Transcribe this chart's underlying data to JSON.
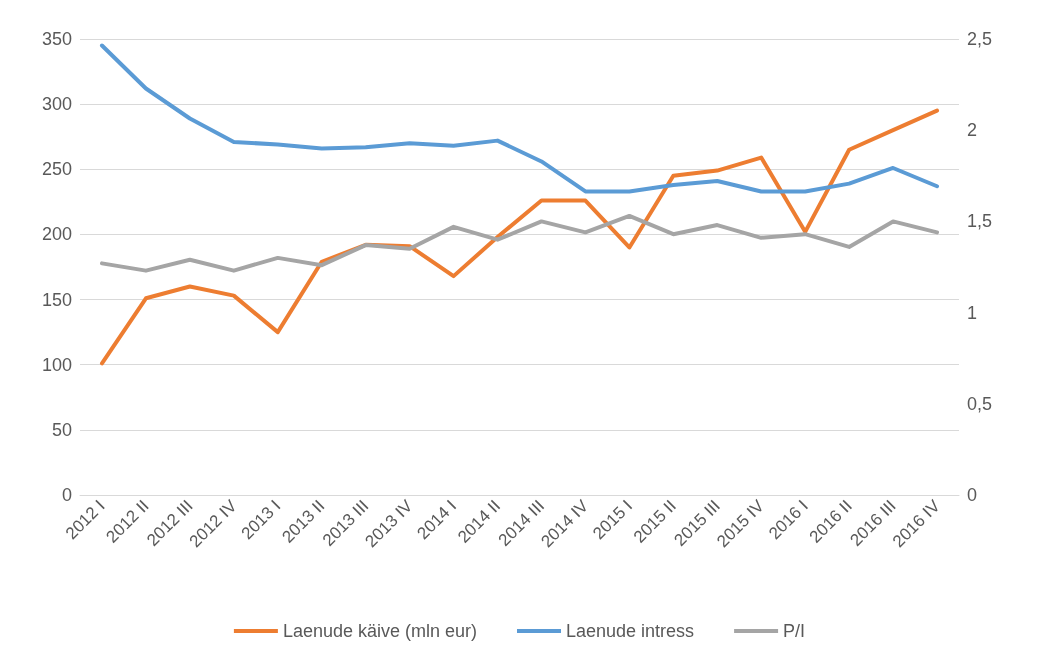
{
  "chart_data": {
    "type": "line",
    "categories": [
      "2012 I",
      "2012 II",
      "2012 III",
      "2012 IV",
      "2013 I",
      "2013 II",
      "2013 III",
      "2013 IV",
      "2014 I",
      "2014 II",
      "2014 III",
      "2014 IV",
      "2015 I",
      "2015 II",
      "2015 III",
      "2015 IV",
      "2016 I",
      "2016 II",
      "2016 III",
      "2016 IV"
    ],
    "series": [
      {
        "name": "Laenude käive (mln eur)",
        "color": "#ed7d31",
        "values": [
          101,
          151,
          160,
          153,
          125,
          179,
          192,
          191,
          168,
          198,
          226,
          226,
          190,
          245,
          249,
          259,
          202,
          265,
          280,
          295
        ]
      },
      {
        "name": "Laenude intress",
        "color": "#5b9bd5",
        "values": [
          345,
          312,
          289,
          271,
          269,
          266,
          267,
          270,
          268,
          272,
          256,
          233,
          233,
          238,
          241,
          233,
          233,
          239,
          251,
          237
        ]
      },
      {
        "name": "P/I",
        "color": "#a5a5a5",
        "axis": "y2",
        "values": [
          1.27,
          1.23,
          1.29,
          1.23,
          1.3,
          1.26,
          1.37,
          1.35,
          1.47,
          1.4,
          1.5,
          1.44,
          1.53,
          1.43,
          1.48,
          1.41,
          1.43,
          1.36,
          1.5,
          1.44
        ]
      }
    ],
    "ylim": [
      0,
      350
    ],
    "yticks": [
      0,
      50,
      100,
      150,
      200,
      250,
      300,
      350
    ],
    "y2lim": [
      0,
      2.5
    ],
    "y2ticks": [
      0,
      {
        "value": 0.5,
        "label": "0,5"
      },
      1,
      {
        "value": 1.5,
        "label": "1,5"
      },
      2,
      {
        "value": 2.5,
        "label": "2,5"
      }
    ],
    "grid": "y",
    "legend": "bottom",
    "marker": "none",
    "line_style": "solid"
  }
}
